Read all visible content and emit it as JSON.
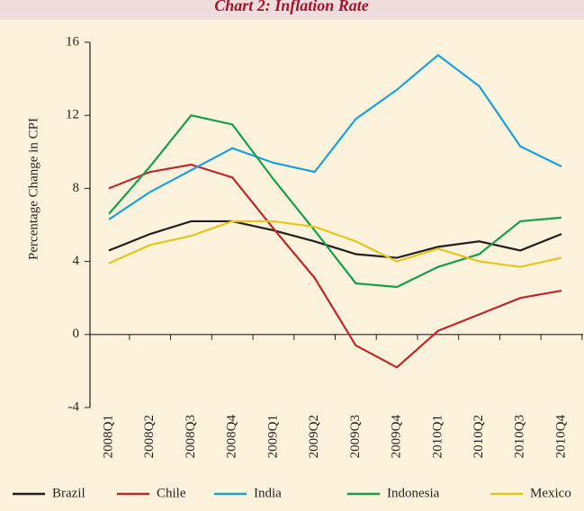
{
  "chart_data": {
    "type": "line",
    "title": "Chart 2: Inflation Rate",
    "y_label": "Percentage Change in CPI",
    "categories": [
      "2008Q1",
      "2008Q2",
      "2008Q3",
      "2008Q4",
      "2009Q1",
      "2009Q2",
      "2009Q3",
      "2009Q4",
      "2010Q1",
      "2010Q2",
      "2010Q3",
      "2010Q4"
    ],
    "series": [
      {
        "name": "Brazil",
        "color": "#231f20",
        "values": [
          4.6,
          5.5,
          6.2,
          6.2,
          5.7,
          5.1,
          4.4,
          4.2,
          4.8,
          5.1,
          4.6,
          5.5
        ]
      },
      {
        "name": "Chile",
        "color": "#c1272d",
        "values": [
          8.0,
          8.9,
          9.3,
          8.6,
          5.8,
          3.1,
          -0.6,
          -1.8,
          0.2,
          1.1,
          2.0,
          2.4
        ]
      },
      {
        "name": "India",
        "color": "#1ba1e2",
        "values": [
          6.3,
          7.8,
          9.0,
          10.2,
          9.4,
          8.9,
          11.8,
          13.4,
          15.3,
          13.6,
          10.3,
          9.2
        ]
      },
      {
        "name": "Indonesia",
        "color": "#16a04a",
        "values": [
          6.6,
          9.2,
          12.0,
          11.5,
          8.5,
          5.7,
          2.8,
          2.6,
          3.7,
          4.4,
          6.2,
          6.4
        ]
      },
      {
        "name": "Mexico",
        "color": "#e6c619",
        "values": [
          3.9,
          4.9,
          5.4,
          6.2,
          6.2,
          5.9,
          5.1,
          4.0,
          4.7,
          4.0,
          3.7,
          4.2
        ]
      }
    ],
    "ylim": [
      -4,
      16
    ],
    "yticks": [
      -4,
      0,
      4,
      8,
      12,
      16
    ]
  }
}
